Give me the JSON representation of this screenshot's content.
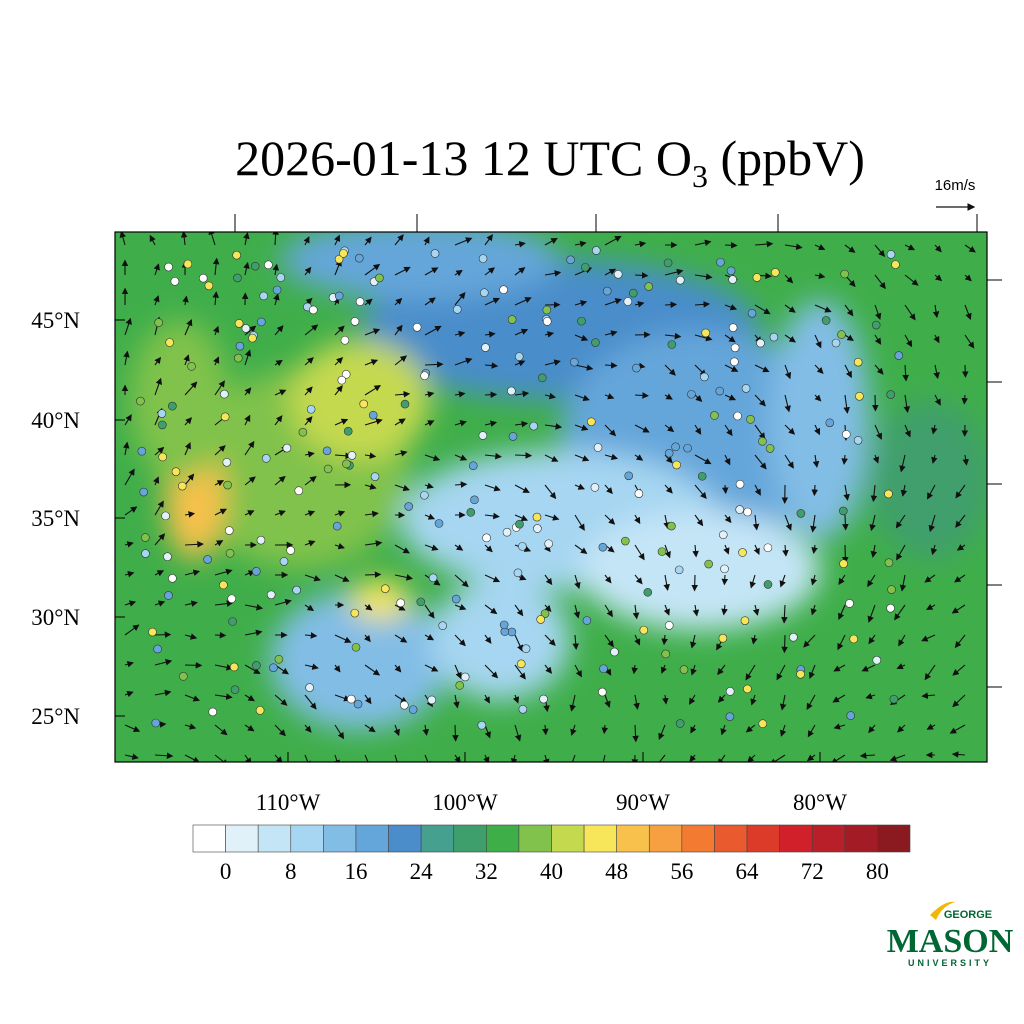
{
  "title": {
    "prefix": "2026-01-13 12 UTC O",
    "subscript": "3",
    "suffix": " (ppbV)"
  },
  "wind_scale": "16m/s",
  "lat_labels": [
    "45°N",
    "40°N",
    "35°N",
    "30°N",
    "25°N"
  ],
  "lon_labels": [
    "110°W",
    "100°W",
    "90°W",
    "80°W"
  ],
  "colorbar": {
    "labels": [
      "0",
      "8",
      "16",
      "24",
      "32",
      "40",
      "48",
      "56",
      "64",
      "72",
      "80"
    ],
    "colors": [
      "#ffffff",
      "#e0f1fa",
      "#c4e5f6",
      "#a6d6f1",
      "#82bde6",
      "#65a6da",
      "#4a8dca",
      "#45a08f",
      "#3f9f6c",
      "#3dae48",
      "#80c24b",
      "#c5d94f",
      "#f8e65a",
      "#f8c14b",
      "#f6a041",
      "#f27b31",
      "#e95b2e",
      "#dd3b29",
      "#d2202a",
      "#b91f29",
      "#a31c25",
      "#8b1a20"
    ]
  },
  "logo": {
    "top": "GEORGE",
    "main": "MASON",
    "bottom": "UNIVERSITY"
  }
}
